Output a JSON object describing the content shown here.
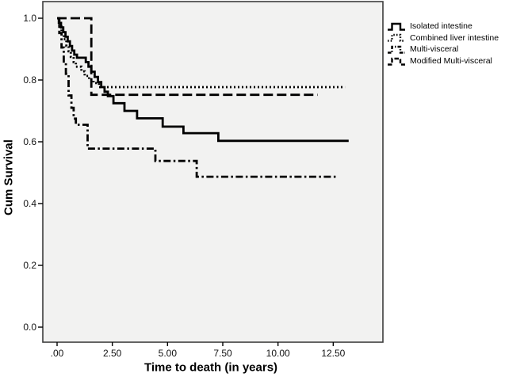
{
  "chart_data": {
    "type": "line",
    "subtype": "kaplan-meier-step",
    "title": "",
    "xlabel": "Time to death (in years)",
    "ylabel": "Cum Survival",
    "grid": false,
    "legend_position": "outside-top-right",
    "colors": {
      "line": "#000000",
      "plot_background": "#f2f2f1",
      "frame": "#3d3d3d",
      "page_background": "#ffffff",
      "tick": "#000000"
    },
    "x_axis": {
      "min": 0,
      "max": 14.75,
      "tick_labels": [
        ".00",
        "2.50",
        "5.00",
        "7.50",
        "10.00",
        "12.50"
      ],
      "tick_values": [
        0,
        2.5,
        5,
        7.5,
        10,
        12.5
      ]
    },
    "y_axis": {
      "min": 0.0,
      "max": 1.0,
      "tick_labels": [
        "1.0",
        "0.8",
        "0.6",
        "0.4",
        "0.2",
        "0.0"
      ],
      "tick_values": [
        1.0,
        0.8,
        0.6,
        0.4,
        0.2,
        0.0
      ]
    },
    "series": [
      {
        "name": "Combined liver intestine",
        "style": "dotted",
        "end": 13.03,
        "steps": [
          [
            0,
            1.0
          ],
          [
            0.1,
            0.978
          ],
          [
            0.2,
            0.955
          ],
          [
            0.3,
            0.932
          ],
          [
            0.42,
            0.91
          ],
          [
            0.52,
            0.893
          ],
          [
            0.62,
            0.875
          ],
          [
            0.75,
            0.858
          ],
          [
            0.85,
            0.843
          ],
          [
            1.1,
            0.828
          ],
          [
            1.25,
            0.813
          ],
          [
            1.45,
            0.8
          ],
          [
            1.65,
            0.79
          ],
          [
            1.9,
            0.777
          ]
        ]
      },
      {
        "name": "Modified Multi-visceral",
        "style": "dashed",
        "end": 11.8,
        "steps": [
          [
            0,
            1.0
          ],
          [
            1.55,
            0.752
          ]
        ]
      },
      {
        "name": "Multi-visceral",
        "style": "dashdot",
        "end": 12.7,
        "steps": [
          [
            0,
            1.0
          ],
          [
            0.1,
            0.952
          ],
          [
            0.2,
            0.905
          ],
          [
            0.3,
            0.855
          ],
          [
            0.4,
            0.82
          ],
          [
            0.52,
            0.75
          ],
          [
            0.65,
            0.71
          ],
          [
            0.75,
            0.675
          ],
          [
            0.85,
            0.655
          ],
          [
            1.38,
            0.578
          ],
          [
            4.45,
            0.538
          ],
          [
            6.32,
            0.487
          ]
        ]
      },
      {
        "name": "Isolated intestine",
        "style": "solid",
        "end": 13.2,
        "steps": [
          [
            0,
            1.0
          ],
          [
            0.08,
            0.985
          ],
          [
            0.18,
            0.97
          ],
          [
            0.28,
            0.955
          ],
          [
            0.38,
            0.94
          ],
          [
            0.48,
            0.925
          ],
          [
            0.58,
            0.91
          ],
          [
            0.68,
            0.895
          ],
          [
            0.78,
            0.882
          ],
          [
            0.9,
            0.872
          ],
          [
            1.3,
            0.858
          ],
          [
            1.42,
            0.843
          ],
          [
            1.55,
            0.827
          ],
          [
            1.7,
            0.81
          ],
          [
            1.85,
            0.793
          ],
          [
            2.0,
            0.777
          ],
          [
            2.15,
            0.762
          ],
          [
            2.3,
            0.748
          ],
          [
            2.55,
            0.725
          ],
          [
            3.05,
            0.7
          ],
          [
            3.62,
            0.676
          ],
          [
            4.78,
            0.649
          ],
          [
            5.72,
            0.628
          ],
          [
            7.3,
            0.603
          ]
        ]
      }
    ],
    "legend_order": [
      "Isolated intestine",
      "Combined liver intestine",
      "Multi-visceral",
      "Modified Multi-visceral"
    ]
  },
  "legend": {
    "items": [
      {
        "label": "Isolated intestine",
        "style": "solid"
      },
      {
        "label": "Combined liver intestine",
        "style": "dotted"
      },
      {
        "label": "Multi-visceral",
        "style": "dashdot"
      },
      {
        "label": "Modified Multi-visceral",
        "style": "dashed"
      }
    ]
  }
}
